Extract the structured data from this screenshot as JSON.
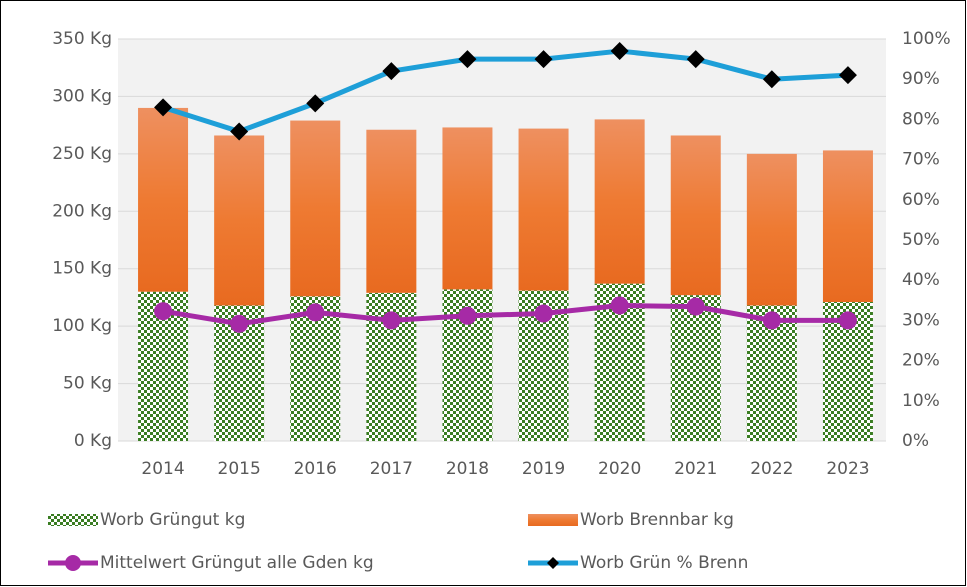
{
  "chart_data": {
    "type": "bar",
    "categories": [
      "2014",
      "2015",
      "2016",
      "2017",
      "2018",
      "2019",
      "2020",
      "2021",
      "2022",
      "2023"
    ],
    "stacked": true,
    "series": [
      {
        "name": "Worb Grüngut kg",
        "color": "#3a7d22",
        "type": "bar",
        "values": [
          130,
          118,
          126,
          129,
          132,
          131,
          137,
          127,
          118,
          121
        ]
      },
      {
        "name": "Worb Brennbar kg",
        "color": "#ed7d31",
        "type": "bar",
        "values": [
          160,
          148,
          153,
          142,
          141,
          141,
          143,
          139,
          132,
          132
        ]
      },
      {
        "name": "Mittelwert Grüngut  alle Gden kg",
        "color": "#a62aa6",
        "type": "line",
        "values": [
          113,
          102,
          112,
          105,
          109,
          111,
          118,
          117,
          105,
          105
        ]
      },
      {
        "name": "Worb Grün % Brenn",
        "color": "#1e9fd8",
        "type": "line",
        "axis": "y2",
        "values": [
          83,
          77,
          84,
          92,
          95,
          95,
          97,
          95,
          90,
          91
        ]
      }
    ],
    "ylim": [
      0,
      350
    ],
    "yticks": [
      {
        "value": 0,
        "label": "0 Kg"
      },
      {
        "value": 50,
        "label": "50 Kg"
      },
      {
        "value": 100,
        "label": "100 Kg"
      },
      {
        "value": 150,
        "label": "150 Kg"
      },
      {
        "value": 200,
        "label": "200 Kg"
      },
      {
        "value": 250,
        "label": "250 Kg"
      },
      {
        "value": 300,
        "label": "300 Kg"
      },
      {
        "value": 350,
        "label": "350 Kg"
      }
    ],
    "y2lim": [
      0,
      100
    ],
    "y2ticks": [
      {
        "value": 0,
        "label": "0%"
      },
      {
        "value": 10,
        "label": "10%"
      },
      {
        "value": 20,
        "label": "20%"
      },
      {
        "value": 30,
        "label": "30%"
      },
      {
        "value": 40,
        "label": "40%"
      },
      {
        "value": 50,
        "label": "50%"
      },
      {
        "value": 60,
        "label": "60%"
      },
      {
        "value": 70,
        "label": "70%"
      },
      {
        "value": 80,
        "label": "80%"
      },
      {
        "value": 90,
        "label": "90%"
      },
      {
        "value": 100,
        "label": "100%"
      }
    ],
    "grid": true,
    "legend": "bottom"
  }
}
